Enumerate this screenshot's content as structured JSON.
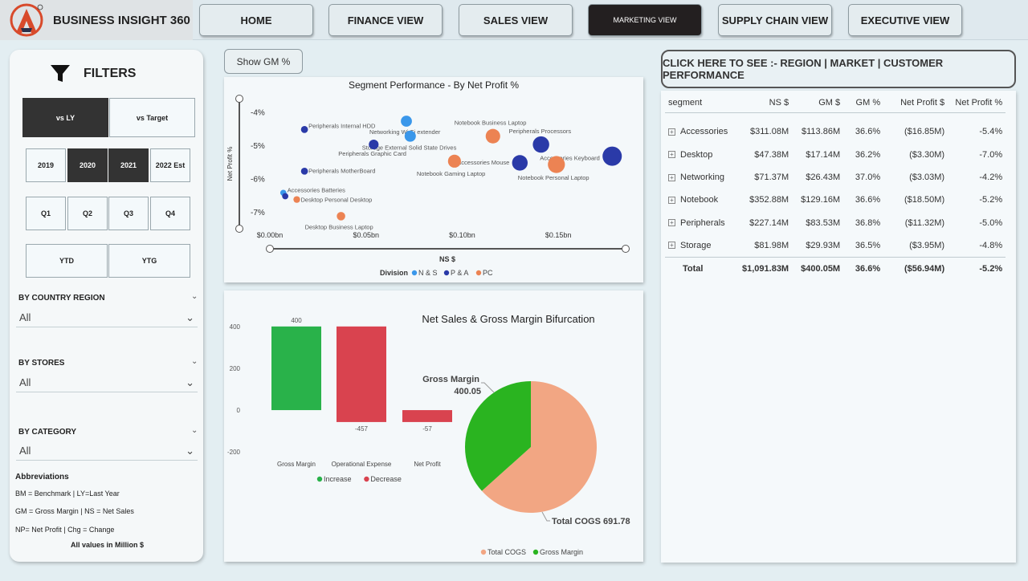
{
  "header": {
    "app_title": "BUSINESS INSIGHT 360",
    "nav": [
      {
        "label": "HOME"
      },
      {
        "label": "FINANCE VIEW"
      },
      {
        "label": "SALES VIEW"
      },
      {
        "label": "MARKETING VIEW"
      },
      {
        "label": "SUPPLY CHAIN VIEW"
      },
      {
        "label": "EXECUTIVE VIEW"
      }
    ],
    "active_nav": "MARKETING VIEW"
  },
  "filters": {
    "title": "FILTERS",
    "compare": [
      {
        "label": "vs LY",
        "selected": true
      },
      {
        "label": "vs Target",
        "selected": false
      }
    ],
    "years": [
      {
        "label": "2019",
        "selected": false
      },
      {
        "label": "2020",
        "selected": true
      },
      {
        "label": "2021",
        "selected": true
      },
      {
        "label": "2022 Est",
        "selected": false
      }
    ],
    "quarters": [
      {
        "label": "Q1"
      },
      {
        "label": "Q2"
      },
      {
        "label": "Q3"
      },
      {
        "label": "Q4"
      }
    ],
    "period": [
      {
        "label": "YTD"
      },
      {
        "label": "YTG"
      }
    ],
    "country_region": {
      "label": "BY COUNTRY REGION",
      "value": "All"
    },
    "stores": {
      "label": "BY STORES",
      "value": "All"
    },
    "category": {
      "label": "BY CATEGORY",
      "value": "All"
    },
    "abbreviations": {
      "title": "Abbreviations",
      "lines": [
        "BM = Benchmark | LY=Last Year",
        "GM = Gross Margin | NS = Net Sales",
        "NP= Net Profit | Chg = Change"
      ],
      "note": "All values in Million $"
    }
  },
  "show_gm_button": "Show GM %",
  "region_button": "CLICK HERE TO SEE :- REGION | MARKET | CUSTOMER PERFORMANCE",
  "colors": {
    "ns": "#3a97ea",
    "pa": "#2a3aa8",
    "pc": "#ec8353",
    "increase": "#29b24a",
    "decrease": "#d9434f",
    "cogs": "#f2a683",
    "gm_pie": "#2ab420"
  },
  "chart_data": [
    {
      "type": "scatter",
      "title": "Segment Performance - By Net Profit %",
      "xlabel": "NS $",
      "ylabel": "Net Profit %",
      "x_ticks": [
        "$0.00bn",
        "$0.05bn",
        "$0.10bn",
        "$0.15bn"
      ],
      "y_ticks": [
        "-4%",
        "-5%",
        "-6%",
        "-7%"
      ],
      "xlim": [
        0,
        0.185
      ],
      "ylim": [
        -7.5,
        -3.6
      ],
      "legend_title": "Division",
      "legend": [
        {
          "name": "N & S",
          "color": "#3a97ea"
        },
        {
          "name": "P & A",
          "color": "#2a3aa8"
        },
        {
          "name": "PC",
          "color": "#ec8353"
        }
      ],
      "points": [
        {
          "label": "Peripherals Internal HDD",
          "x": 0.018,
          "y": -4.5,
          "division": "P & A",
          "size": 0.018
        },
        {
          "label": "Networking Wi-Fi extender",
          "x": 0.071,
          "y": -4.25,
          "division": "N & S",
          "size": 0.071
        },
        {
          "label": "Storage External Solid State Drives",
          "x": 0.073,
          "y": -4.7,
          "division": "N & S",
          "size": 0.073
        },
        {
          "label": "Peripherals Graphic Card",
          "x": 0.054,
          "y": -4.95,
          "division": "P & A",
          "size": 0.054
        },
        {
          "label": "Notebook Business Laptop",
          "x": 0.116,
          "y": -4.7,
          "division": "PC",
          "size": 0.116
        },
        {
          "label": "Peripherals Processors",
          "x": 0.141,
          "y": -4.95,
          "division": "P & A",
          "size": 0.141
        },
        {
          "label": "Accessories Keyboard",
          "x": 0.178,
          "y": -5.3,
          "division": "P & A",
          "size": 0.178
        },
        {
          "label": "Accessories Mouse",
          "x": 0.13,
          "y": -5.5,
          "division": "P & A",
          "size": 0.13
        },
        {
          "label": "Notebook Personal Laptop",
          "x": 0.149,
          "y": -5.55,
          "division": "PC",
          "size": 0.149
        },
        {
          "label": "Notebook Gaming Laptop",
          "x": 0.096,
          "y": -5.45,
          "division": "PC",
          "size": 0.096
        },
        {
          "label": "Peripherals MotherBoard",
          "x": 0.018,
          "y": -5.75,
          "division": "P & A",
          "size": 0.018
        },
        {
          "label": "Accessories Batteries",
          "x": 0.007,
          "y": -6.4,
          "division": "N & S",
          "size": 0.007
        },
        {
          "label": "",
          "x": 0.008,
          "y": -6.5,
          "division": "P & A",
          "size": 0.008
        },
        {
          "label": "Desktop Personal Desktop",
          "x": 0.014,
          "y": -6.6,
          "division": "PC",
          "size": 0.014
        },
        {
          "label": "Desktop Business Laptop",
          "x": 0.037,
          "y": -7.1,
          "division": "PC",
          "size": 0.037
        }
      ]
    },
    {
      "type": "bar",
      "subtype": "waterfall",
      "categories": [
        "Gross Margin",
        "Operational Expense",
        "Net Profit"
      ],
      "values": [
        400,
        -457,
        -57
      ],
      "data_labels": [
        "400",
        "-457",
        "-57"
      ],
      "y_ticks": [
        "400",
        "200",
        "0",
        "-200"
      ],
      "ylim": [
        -230,
        430
      ],
      "legend": [
        {
          "name": "Increase",
          "color": "#29b24a"
        },
        {
          "name": "Decrease",
          "color": "#d9434f"
        }
      ]
    },
    {
      "type": "pie",
      "title": "Net Sales & Gross Margin Bifurcation",
      "slices": [
        {
          "name": "Total COGS",
          "value": 691.78,
          "color": "#f2a683",
          "label": "Total COGS 691.78"
        },
        {
          "name": "Gross Margin",
          "value": 400.05,
          "color": "#2ab420",
          "label_name": "Gross Margin",
          "label_value": "400.05"
        }
      ],
      "legend": [
        {
          "name": "Total COGS",
          "color": "#f2a683"
        },
        {
          "name": "Gross Margin",
          "color": "#2ab420"
        }
      ]
    }
  ],
  "segment_table": {
    "columns": [
      "segment",
      "NS $",
      "GM $",
      "GM %",
      "Net Profit $",
      "Net Profit %"
    ],
    "rows": [
      [
        "Accessories",
        "$311.08M",
        "$113.86M",
        "36.6%",
        "($16.85M)",
        "-5.4%"
      ],
      [
        "Desktop",
        "$47.38M",
        "$17.14M",
        "36.2%",
        "($3.30M)",
        "-7.0%"
      ],
      [
        "Networking",
        "$71.37M",
        "$26.43M",
        "37.0%",
        "($3.03M)",
        "-4.2%"
      ],
      [
        "Notebook",
        "$352.88M",
        "$129.16M",
        "36.6%",
        "($18.50M)",
        "-5.2%"
      ],
      [
        "Peripherals",
        "$227.14M",
        "$83.53M",
        "36.8%",
        "($11.32M)",
        "-5.0%"
      ],
      [
        "Storage",
        "$81.98M",
        "$29.93M",
        "36.5%",
        "($3.95M)",
        "-4.8%"
      ]
    ],
    "total": [
      "Total",
      "$1,091.83M",
      "$400.05M",
      "36.6%",
      "($56.94M)",
      "-5.2%"
    ]
  }
}
